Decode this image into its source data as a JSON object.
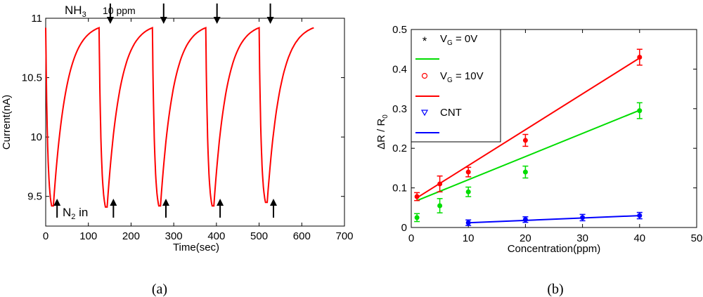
{
  "chart_data": [
    {
      "id": "a",
      "type": "line",
      "caption": "(a)",
      "xlabel": "Time(sec)",
      "ylabel": "Current(nA)",
      "xlim": [
        0,
        700
      ],
      "ylim": [
        9.25,
        11
      ],
      "xticks": [
        "0",
        "100",
        "200",
        "300",
        "400",
        "500",
        "600",
        "700"
      ],
      "yticks": [
        "9.5",
        "10",
        "10.5",
        "11"
      ],
      "series": [
        {
          "name": "current",
          "color": "#ff0000",
          "cycles": [
            {
              "start": 0,
              "min_t": 14,
              "min_i": 9.42,
              "end": 125
            },
            {
              "start": 125,
              "min_t": 140,
              "min_i": 9.41,
              "end": 250
            },
            {
              "start": 250,
              "min_t": 265,
              "min_i": 9.42,
              "end": 375
            },
            {
              "start": 375,
              "min_t": 390,
              "min_i": 9.42,
              "end": 500
            },
            {
              "start": 500,
              "min_t": 515,
              "min_i": 9.45,
              "end": 628
            }
          ]
        }
      ],
      "annotations": {
        "nh3_base": "NH",
        "nh3_sub": "3",
        "nh3_conc": "10 ppm",
        "n2_base": "N",
        "n2_sub": "2",
        "n2_suffix": " in",
        "down_arrows_t": [
          125,
          250,
          375,
          500
        ],
        "up_arrows_t": [
          25,
          157,
          280,
          407,
          532
        ]
      }
    },
    {
      "id": "b",
      "type": "scatter",
      "caption": "(b)",
      "xlabel": "Concentration(ppm)",
      "ylabel_main": "ΔR / R",
      "ylabel_sub": "0",
      "xlim": [
        0,
        50
      ],
      "ylim": [
        0,
        0.5
      ],
      "xticks": [
        "0",
        "10",
        "20",
        "30",
        "40",
        "50"
      ],
      "yticks": [
        "0",
        "0.1",
        "0.2",
        "0.3",
        "0.4",
        "0.5"
      ],
      "series": [
        {
          "name": "VG = 0V",
          "legend_base": "V",
          "legend_sub": "G",
          "legend_rest": " = 0V",
          "color": "#00dd00",
          "marker": "*",
          "x": [
            1,
            5,
            10,
            20,
            40
          ],
          "y": [
            0.025,
            0.055,
            0.09,
            0.14,
            0.295
          ],
          "err": [
            0.01,
            0.018,
            0.012,
            0.015,
            0.02
          ],
          "fit": [
            [
              1,
              0.068
            ],
            [
              40,
              0.296
            ]
          ]
        },
        {
          "name": "VG = 10V",
          "legend_base": "V",
          "legend_sub": "G",
          "legend_rest": " = 10V",
          "color": "#ff0000",
          "marker": "o",
          "x": [
            1,
            5,
            10,
            20,
            40
          ],
          "y": [
            0.078,
            0.11,
            0.14,
            0.22,
            0.43
          ],
          "err": [
            0.01,
            0.02,
            0.012,
            0.015,
            0.02
          ],
          "fit": [
            [
              1,
              0.075
            ],
            [
              40,
              0.428
            ]
          ]
        },
        {
          "name": "CNT",
          "legend_base": "CNT",
          "legend_sub": "",
          "legend_rest": "",
          "color": "#0000ff",
          "marker": "v",
          "x": [
            10,
            20,
            30,
            40
          ],
          "y": [
            0.012,
            0.02,
            0.025,
            0.03
          ],
          "err": [
            0.007,
            0.007,
            0.008,
            0.008
          ],
          "fit": [
            [
              10,
              0.012
            ],
            [
              40,
              0.03
            ]
          ]
        }
      ],
      "legend_position": "top-left"
    }
  ]
}
